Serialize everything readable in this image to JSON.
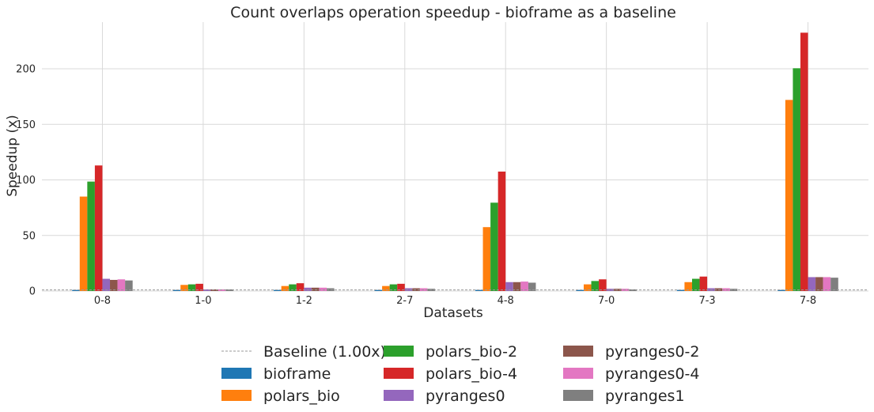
{
  "chart_data": {
    "type": "bar",
    "title": "Count overlaps operation speedup - bioframe as a baseline",
    "xlabel": "Datasets",
    "ylabel": "Speedup (x)",
    "ylim": [
      0,
      242
    ],
    "yticks": [
      0,
      50,
      100,
      150,
      200
    ],
    "grid": true,
    "legend_position": "bottom-center",
    "categories": [
      "0-8",
      "1-0",
      "1-2",
      "2-7",
      "4-8",
      "7-0",
      "7-3",
      "7-8"
    ],
    "baseline": {
      "label": "Baseline (1.00x)",
      "value": 1.0,
      "color": "#999999"
    },
    "series": [
      {
        "name": "bioframe",
        "color": "#1f77b4",
        "values": [
          1,
          1,
          1,
          1,
          1,
          1,
          1,
          1
        ]
      },
      {
        "name": "polars_bio",
        "color": "#ff7f0e",
        "values": [
          85,
          5.5,
          4.5,
          4.5,
          57.5,
          6,
          8,
          172
        ]
      },
      {
        "name": "polars_bio-2",
        "color": "#2ca02c",
        "values": [
          98.5,
          6,
          6,
          6,
          79.5,
          9,
          11,
          200.5
        ]
      },
      {
        "name": "polars_bio-4",
        "color": "#d62728",
        "values": [
          113,
          6.5,
          7,
          6.5,
          107.5,
          10.5,
          13,
          232.5
        ]
      },
      {
        "name": "pyranges0",
        "color": "#9467bd",
        "values": [
          11,
          1.5,
          3,
          2.5,
          8,
          2,
          2.5,
          12.5
        ]
      },
      {
        "name": "pyranges0-2",
        "color": "#8c564b",
        "values": [
          10,
          1.5,
          3,
          2.5,
          8,
          2,
          2.5,
          12.5
        ]
      },
      {
        "name": "pyranges0-4",
        "color": "#e377c2",
        "values": [
          10.5,
          1.5,
          3,
          2.5,
          8.5,
          2,
          2.5,
          12.5
        ]
      },
      {
        "name": "pyranges1",
        "color": "#7f7f7f",
        "values": [
          9.5,
          1.5,
          2.5,
          2,
          7.5,
          1.5,
          2,
          12
        ]
      }
    ]
  }
}
